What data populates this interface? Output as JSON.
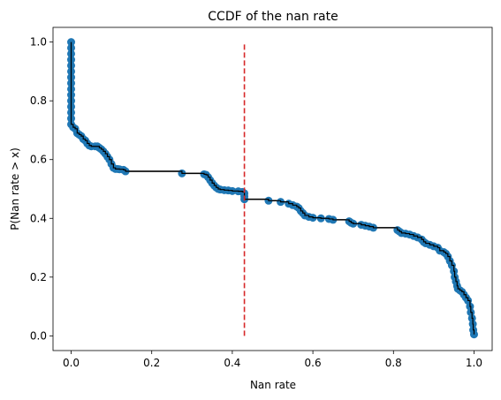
{
  "chart_data": {
    "type": "scatter",
    "title": "CCDF of the nan rate",
    "xlabel": "Nan rate",
    "ylabel": "P(Nan rate > x)",
    "xlim": [
      -0.045,
      1.045
    ],
    "ylim": [
      -0.05,
      1.05
    ],
    "xticks": [
      0.0,
      0.2,
      0.4,
      0.6,
      0.8,
      1.0
    ],
    "xtick_labels": [
      "0.0",
      "0.2",
      "0.4",
      "0.6",
      "0.8",
      "1.0"
    ],
    "yticks": [
      0.0,
      0.2,
      0.4,
      0.6,
      0.8,
      1.0
    ],
    "ytick_labels": [
      "0.0",
      "0.2",
      "0.4",
      "0.6",
      "0.8",
      "1.0"
    ],
    "grid": false,
    "colors": {
      "points": "#1f77b4",
      "line": "#000000",
      "threshold": "#d62728"
    },
    "series": [
      {
        "kind": "ccdf",
        "points": [
          [
            0.0,
            1.0
          ],
          [
            0.0,
            0.98
          ],
          [
            0.0,
            0.96
          ],
          [
            0.0,
            0.94
          ],
          [
            0.0,
            0.92
          ],
          [
            0.0,
            0.9
          ],
          [
            0.0,
            0.88
          ],
          [
            0.0,
            0.86
          ],
          [
            0.0,
            0.84
          ],
          [
            0.0,
            0.82
          ],
          [
            0.0,
            0.8
          ],
          [
            0.0,
            0.78
          ],
          [
            0.0,
            0.76
          ],
          [
            0.0,
            0.74
          ],
          [
            0.0,
            0.72
          ],
          [
            0.005,
            0.71
          ],
          [
            0.01,
            0.705
          ],
          [
            0.015,
            0.69
          ],
          [
            0.02,
            0.685
          ],
          [
            0.025,
            0.68
          ],
          [
            0.03,
            0.67
          ],
          [
            0.035,
            0.665
          ],
          [
            0.04,
            0.655
          ],
          [
            0.045,
            0.648
          ],
          [
            0.05,
            0.645
          ],
          [
            0.06,
            0.645
          ],
          [
            0.065,
            0.645
          ],
          [
            0.07,
            0.64
          ],
          [
            0.075,
            0.635
          ],
          [
            0.08,
            0.628
          ],
          [
            0.085,
            0.62
          ],
          [
            0.09,
            0.61
          ],
          [
            0.095,
            0.6
          ],
          [
            0.1,
            0.585
          ],
          [
            0.105,
            0.572
          ],
          [
            0.11,
            0.568
          ],
          [
            0.115,
            0.568
          ],
          [
            0.12,
            0.567
          ],
          [
            0.13,
            0.565
          ],
          [
            0.135,
            0.56
          ],
          [
            0.275,
            0.553
          ],
          [
            0.33,
            0.55
          ],
          [
            0.335,
            0.548
          ],
          [
            0.34,
            0.54
          ],
          [
            0.345,
            0.53
          ],
          [
            0.35,
            0.52
          ],
          [
            0.355,
            0.512
          ],
          [
            0.36,
            0.505
          ],
          [
            0.365,
            0.5
          ],
          [
            0.37,
            0.498
          ],
          [
            0.38,
            0.496
          ],
          [
            0.39,
            0.495
          ],
          [
            0.4,
            0.493
          ],
          [
            0.415,
            0.492
          ],
          [
            0.425,
            0.49
          ],
          [
            0.43,
            0.485
          ],
          [
            0.43,
            0.475
          ],
          [
            0.43,
            0.465
          ],
          [
            0.49,
            0.46
          ],
          [
            0.52,
            0.456
          ],
          [
            0.54,
            0.45
          ],
          [
            0.55,
            0.445
          ],
          [
            0.56,
            0.44
          ],
          [
            0.565,
            0.435
          ],
          [
            0.57,
            0.425
          ],
          [
            0.575,
            0.418
          ],
          [
            0.58,
            0.41
          ],
          [
            0.59,
            0.405
          ],
          [
            0.6,
            0.402
          ],
          [
            0.62,
            0.4
          ],
          [
            0.64,
            0.398
          ],
          [
            0.65,
            0.395
          ],
          [
            0.69,
            0.39
          ],
          [
            0.695,
            0.385
          ],
          [
            0.7,
            0.382
          ],
          [
            0.72,
            0.378
          ],
          [
            0.73,
            0.375
          ],
          [
            0.74,
            0.372
          ],
          [
            0.75,
            0.368
          ],
          [
            0.81,
            0.36
          ],
          [
            0.815,
            0.355
          ],
          [
            0.82,
            0.35
          ],
          [
            0.83,
            0.348
          ],
          [
            0.84,
            0.345
          ],
          [
            0.85,
            0.34
          ],
          [
            0.86,
            0.335
          ],
          [
            0.87,
            0.328
          ],
          [
            0.875,
            0.32
          ],
          [
            0.88,
            0.315
          ],
          [
            0.89,
            0.31
          ],
          [
            0.9,
            0.305
          ],
          [
            0.91,
            0.3
          ],
          [
            0.915,
            0.29
          ],
          [
            0.925,
            0.285
          ],
          [
            0.93,
            0.28
          ],
          [
            0.935,
            0.27
          ],
          [
            0.94,
            0.255
          ],
          [
            0.945,
            0.24
          ],
          [
            0.95,
            0.22
          ],
          [
            0.952,
            0.2
          ],
          [
            0.955,
            0.185
          ],
          [
            0.958,
            0.17
          ],
          [
            0.96,
            0.16
          ],
          [
            0.965,
            0.155
          ],
          [
            0.97,
            0.15
          ],
          [
            0.975,
            0.14
          ],
          [
            0.98,
            0.13
          ],
          [
            0.985,
            0.12
          ],
          [
            0.99,
            0.1
          ],
          [
            0.992,
            0.08
          ],
          [
            0.995,
            0.06
          ],
          [
            0.997,
            0.04
          ],
          [
            0.998,
            0.02
          ],
          [
            1.0,
            0.005
          ]
        ]
      }
    ],
    "threshold_x": 0.43,
    "threshold_yrange": [
      0.0,
      1.0
    ]
  }
}
